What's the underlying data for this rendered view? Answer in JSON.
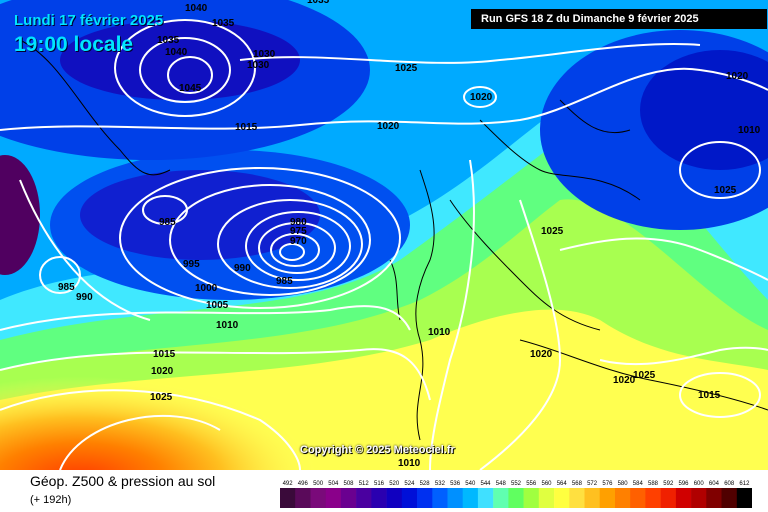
{
  "header": {
    "date_line": "Lundi 17 février 2025",
    "time_line": "19:00 locale",
    "run_info": "Run GFS 18 Z du Dimanche 9 février 2025"
  },
  "copyright": "Copyright © 2025 Meteociel.fr",
  "footer": {
    "title": "Géop. Z500 & pression au sol",
    "subtitle": "(+ 192h)"
  },
  "scale": {
    "labels": [
      "492",
      "496",
      "500",
      "504",
      "508",
      "512",
      "516",
      "520",
      "524",
      "528",
      "532",
      "536",
      "540",
      "544",
      "548",
      "552",
      "556",
      "560",
      "564",
      "568",
      "572",
      "576",
      "580",
      "584",
      "588",
      "592",
      "596",
      "600",
      "604",
      "608",
      "612"
    ],
    "colors": [
      "#3a0a3a",
      "#5a0a5a",
      "#7a0a7a",
      "#8a008a",
      "#6a0090",
      "#4a00a0",
      "#2a00b0",
      "#1000c0",
      "#0010d8",
      "#0030f0",
      "#0060ff",
      "#0090ff",
      "#00b8ff",
      "#40e0ff",
      "#60ffb0",
      "#60ff60",
      "#a0ff40",
      "#e0ff40",
      "#ffff40",
      "#ffe040",
      "#ffc020",
      "#ffa000",
      "#ff8000",
      "#ff6000",
      "#ff4000",
      "#f02000",
      "#d00000",
      "#b00000",
      "#800000",
      "#500000",
      "#000000"
    ]
  },
  "isobar_labels": [
    {
      "text": "1040"
    },
    {
      "text": "1035"
    },
    {
      "text": "1035"
    },
    {
      "text": "1040"
    },
    {
      "text": "1030"
    },
    {
      "text": "1030"
    },
    {
      "text": "1045"
    },
    {
      "text": "1015"
    },
    {
      "text": "1025"
    },
    {
      "text": "1020"
    },
    {
      "text": "1020"
    },
    {
      "text": "1020"
    },
    {
      "text": "1010"
    },
    {
      "text": "1025"
    },
    {
      "text": "985"
    },
    {
      "text": "980"
    },
    {
      "text": "975"
    },
    {
      "text": "970"
    },
    {
      "text": "985"
    },
    {
      "text": "995"
    },
    {
      "text": "990"
    },
    {
      "text": "1000"
    },
    {
      "text": "1005"
    },
    {
      "text": "985"
    },
    {
      "text": "990"
    },
    {
      "text": "1010"
    },
    {
      "text": "1025"
    },
    {
      "text": "1010"
    },
    {
      "text": "1020"
    },
    {
      "text": "1015"
    },
    {
      "text": "1020"
    },
    {
      "text": "1025"
    },
    {
      "text": "1020"
    },
    {
      "text": "1025"
    },
    {
      "text": "1015"
    },
    {
      "text": "1010"
    },
    {
      "text": "1035"
    }
  ]
}
